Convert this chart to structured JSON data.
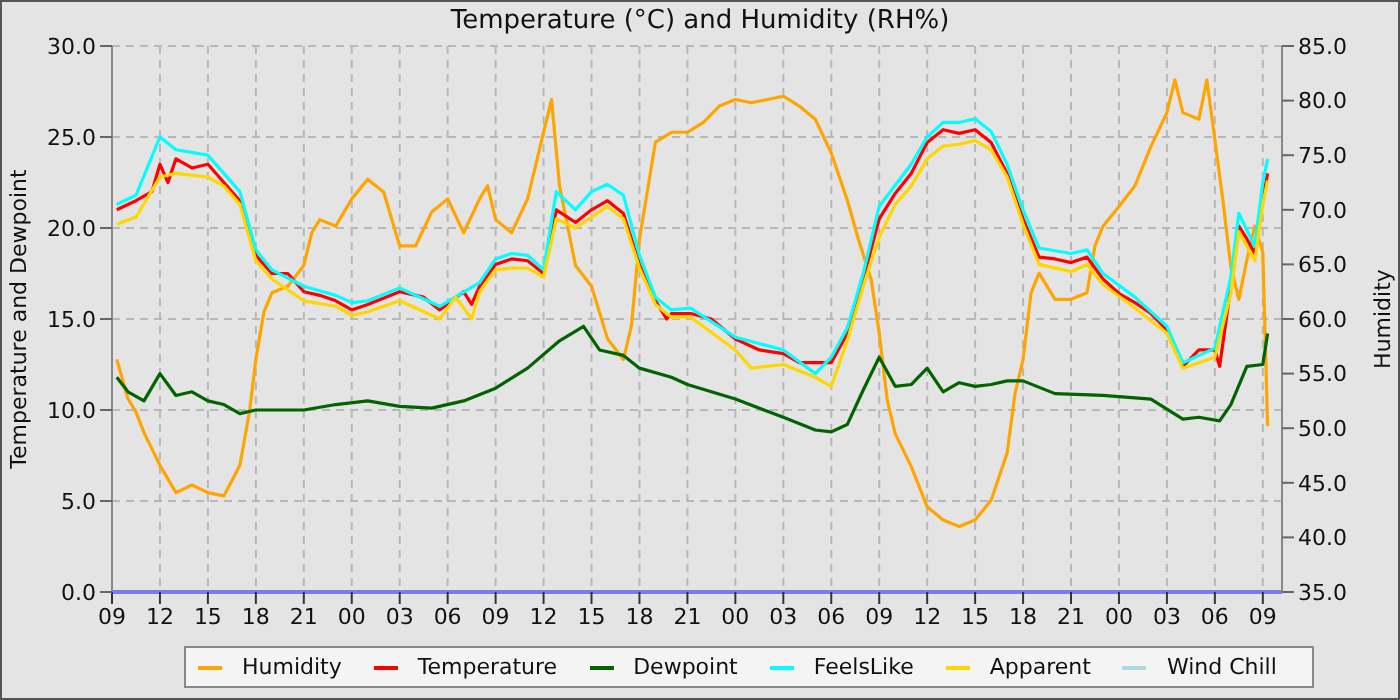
{
  "chart_data": {
    "type": "line",
    "title": "Temperature (°C) and Humidity (RH%)",
    "ylabel": "Temperature and Dewpoint",
    "y2label": "Humidity",
    "xlim": [
      9,
      82.2
    ],
    "xticks": [
      {
        "value": 9,
        "label": "09"
      },
      {
        "value": 12,
        "label": "12"
      },
      {
        "value": 15,
        "label": "15"
      },
      {
        "value": 18,
        "label": "18"
      },
      {
        "value": 21,
        "label": "21"
      },
      {
        "value": 24,
        "label": "00"
      },
      {
        "value": 27,
        "label": "03"
      },
      {
        "value": 30,
        "label": "06"
      },
      {
        "value": 33,
        "label": "09"
      },
      {
        "value": 36,
        "label": "12"
      },
      {
        "value": 39,
        "label": "15"
      },
      {
        "value": 42,
        "label": "18"
      },
      {
        "value": 45,
        "label": "21"
      },
      {
        "value": 48,
        "label": "00"
      },
      {
        "value": 51,
        "label": "03"
      },
      {
        "value": 54,
        "label": "06"
      },
      {
        "value": 57,
        "label": "09"
      },
      {
        "value": 60,
        "label": "12"
      },
      {
        "value": 63,
        "label": "15"
      },
      {
        "value": 66,
        "label": "18"
      },
      {
        "value": 69,
        "label": "21"
      },
      {
        "value": 72,
        "label": "00"
      },
      {
        "value": 75,
        "label": "03"
      },
      {
        "value": 78,
        "label": "06"
      },
      {
        "value": 81,
        "label": "09"
      }
    ],
    "ylim": [
      0,
      30
    ],
    "yticks": [
      {
        "value": 0,
        "label": "0.0"
      },
      {
        "value": 5,
        "label": "5.0"
      },
      {
        "value": 10,
        "label": "10.0"
      },
      {
        "value": 15,
        "label": "15.0"
      },
      {
        "value": 20,
        "label": "20.0"
      },
      {
        "value": 25,
        "label": "25.0"
      },
      {
        "value": 30,
        "label": "30.0"
      }
    ],
    "y2lim": [
      35,
      85
    ],
    "y2ticks": [
      {
        "value": 35,
        "label": "35.0"
      },
      {
        "value": 40,
        "label": "40.0"
      },
      {
        "value": 45,
        "label": "45.0"
      },
      {
        "value": 50,
        "label": "50.0"
      },
      {
        "value": 55,
        "label": "55.0"
      },
      {
        "value": 60,
        "label": "60.0"
      },
      {
        "value": 65,
        "label": "65.0"
      },
      {
        "value": 70,
        "label": "70.0"
      },
      {
        "value": 75,
        "label": "75.0"
      },
      {
        "value": 80,
        "label": "80.0"
      },
      {
        "value": 85,
        "label": "85.0"
      }
    ],
    "grid": true,
    "legend": "bottom",
    "marker": "none",
    "line_style": "solid",
    "series": [
      {
        "name": "Humidity",
        "color": "#ffa500",
        "axis": "y2",
        "x": [
          9.3,
          10,
          10.5,
          11,
          12,
          13,
          14,
          15,
          16,
          17,
          17.6,
          18,
          18.5,
          19,
          20,
          21,
          21.5,
          22,
          23,
          24,
          25,
          26,
          27,
          28,
          29,
          30,
          31,
          32,
          32.5,
          33,
          34,
          35,
          36,
          36.5,
          37,
          38,
          39,
          40,
          41,
          41.5,
          42,
          43,
          44,
          45,
          46,
          47,
          48,
          49,
          51,
          52,
          53,
          54,
          55,
          55.7,
          56.5,
          57,
          57.5,
          58,
          59,
          60,
          61,
          62,
          63,
          64,
          65,
          65.5,
          66,
          66.5,
          67,
          68,
          69,
          70,
          70.5,
          71,
          72,
          73,
          74,
          75,
          75.5,
          76,
          77,
          77.5,
          78,
          78.5,
          79,
          79.5,
          80,
          80.5,
          81,
          81.3
        ],
        "values": [
          56.3,
          52.7,
          51.5,
          49.6,
          46.6,
          44.1,
          44.8,
          44.1,
          43.8,
          46.6,
          51.5,
          56.3,
          60.6,
          62.4,
          63.0,
          64.9,
          67.9,
          69.1,
          68.5,
          71.0,
          72.8,
          71.6,
          66.7,
          66.7,
          69.8,
          71.0,
          67.9,
          71.0,
          72.2,
          69.1,
          67.9,
          71.0,
          77.1,
          80.1,
          72.2,
          64.9,
          63.0,
          58.2,
          56.3,
          59.4,
          67.3,
          76.2,
          77.1,
          77.1,
          78.0,
          79.5,
          80.1,
          79.8,
          80.4,
          79.5,
          78.3,
          75.2,
          70.9,
          67.3,
          63.6,
          58.7,
          52.6,
          49.5,
          46.5,
          42.8,
          41.6,
          41.0,
          41.6,
          43.4,
          47.7,
          53.2,
          56.3,
          62.4,
          64.2,
          61.8,
          61.8,
          62.4,
          66.7,
          68.5,
          70.3,
          72.2,
          75.8,
          78.9,
          81.9,
          78.9,
          78.3,
          81.9,
          76.4,
          70.9,
          64.8,
          61.8,
          65.4,
          68.5,
          66.1,
          50.2
        ]
      },
      {
        "name": "Temperature",
        "color": "#ff0000",
        "x": [
          9.3,
          10.5,
          11.5,
          12,
          12.5,
          13,
          14,
          15,
          16,
          17,
          18,
          19,
          20,
          21,
          22,
          23,
          24,
          25,
          27,
          28.5,
          29.5,
          31,
          31.5,
          32,
          33,
          34,
          35,
          36,
          36.8,
          38,
          39,
          40,
          41,
          42,
          43,
          43.7,
          44,
          45.2,
          46.5,
          48,
          49.5,
          51,
          52,
          54,
          55,
          56,
          57,
          58,
          59,
          60,
          61,
          62,
          63,
          64,
          65,
          66,
          67,
          68,
          69,
          70,
          71,
          72,
          73,
          74,
          75,
          76,
          77,
          78,
          78.3,
          79,
          79.5,
          80,
          80.5,
          81,
          81.3
        ],
        "values": [
          21.0,
          21.5,
          22.0,
          23.5,
          22.5,
          23.8,
          23.3,
          23.5,
          22.5,
          21.5,
          18.5,
          17.5,
          17.5,
          16.5,
          16.3,
          16.0,
          15.5,
          15.8,
          16.5,
          16.2,
          15.5,
          16.5,
          15.8,
          16.8,
          18.0,
          18.3,
          18.2,
          17.5,
          21.0,
          20.3,
          21.0,
          21.5,
          20.8,
          18.0,
          16.0,
          15.0,
          15.3,
          15.3,
          15.0,
          13.9,
          13.3,
          13.1,
          12.6,
          12.6,
          14.2,
          17.2,
          20.5,
          21.9,
          23.0,
          24.7,
          25.4,
          25.2,
          25.4,
          24.7,
          23.0,
          20.5,
          18.4,
          18.3,
          18.1,
          18.4,
          17.2,
          16.4,
          15.9,
          15.3,
          14.4,
          12.4,
          13.3,
          13.3,
          12.4,
          16.8,
          20.1,
          19.4,
          18.6,
          21.6,
          23.0
        ]
      },
      {
        "name": "Dewpoint",
        "color": "#006400",
        "x": [
          9.3,
          10,
          11,
          12,
          13,
          14,
          15,
          16,
          17,
          18,
          19,
          21,
          23,
          25,
          27,
          29,
          31,
          33,
          35,
          37,
          38.5,
          39.5,
          41,
          42,
          44,
          45,
          48,
          51,
          53,
          54,
          55,
          56,
          57,
          58,
          59,
          60,
          61,
          62,
          63,
          64,
          65,
          66,
          68,
          71,
          74,
          76,
          77,
          78.3,
          79,
          80,
          81,
          81.3
        ],
        "values": [
          11.8,
          11.0,
          10.5,
          12.0,
          10.8,
          11.0,
          10.5,
          10.3,
          9.8,
          10.0,
          10.0,
          10.0,
          10.3,
          10.5,
          10.2,
          10.1,
          10.5,
          11.2,
          12.3,
          13.8,
          14.6,
          13.3,
          13.0,
          12.3,
          11.8,
          11.4,
          10.6,
          9.6,
          8.9,
          8.8,
          9.2,
          11.1,
          12.9,
          11.3,
          11.4,
          12.3,
          11.0,
          11.5,
          11.3,
          11.4,
          11.6,
          11.6,
          10.9,
          10.8,
          10.6,
          9.5,
          9.6,
          9.4,
          10.3,
          12.4,
          12.5,
          14.2
        ]
      },
      {
        "name": "FeelsLike",
        "color": "#00ffff",
        "x": [
          9.3,
          10.5,
          12,
          13,
          15,
          16,
          17,
          18,
          19,
          21,
          23,
          24,
          25,
          27,
          29.5,
          32,
          33,
          34,
          35,
          36,
          36.8,
          38,
          39,
          40,
          41,
          42,
          43,
          44,
          45.2,
          48,
          51,
          53,
          54,
          55,
          56,
          57,
          59,
          60,
          61,
          62,
          63,
          64,
          65,
          66,
          67,
          69,
          70,
          71,
          73,
          75,
          76,
          78,
          79,
          79.5,
          80.5,
          81,
          81.3
        ],
        "values": [
          21.3,
          21.8,
          25.0,
          24.3,
          24.0,
          23.0,
          22.0,
          18.8,
          17.7,
          16.8,
          16.3,
          15.9,
          16.0,
          16.7,
          15.7,
          17.0,
          18.3,
          18.6,
          18.5,
          17.7,
          22.0,
          21.0,
          22.0,
          22.4,
          21.8,
          18.5,
          16.2,
          15.5,
          15.6,
          14.0,
          13.3,
          12.0,
          12.9,
          14.5,
          17.5,
          21.2,
          23.5,
          25.0,
          25.8,
          25.8,
          26.0,
          25.3,
          23.5,
          21.0,
          18.9,
          18.6,
          18.8,
          17.5,
          16.2,
          14.6,
          12.6,
          13.4,
          17.3,
          20.8,
          19.0,
          22.5,
          23.8
        ]
      },
      {
        "name": "Apparent",
        "color": "#ffd700",
        "x": [
          9.3,
          10.5,
          12,
          13,
          15,
          16,
          17,
          18,
          19,
          21,
          23,
          24,
          25,
          27,
          29.5,
          30.5,
          31.5,
          32,
          33,
          34,
          35,
          36,
          36.8,
          38,
          39,
          40,
          41,
          42,
          43,
          44,
          45.2,
          48,
          49,
          51,
          53,
          54,
          55,
          56,
          57,
          58,
          59,
          60,
          61,
          62,
          63,
          64,
          65,
          66,
          67,
          69,
          70,
          71,
          73,
          75,
          76,
          78,
          79,
          79.5,
          80.5,
          81,
          81.3
        ],
        "values": [
          20.2,
          20.6,
          22.8,
          23.0,
          22.8,
          22.3,
          21.3,
          18.2,
          17.2,
          16.0,
          15.7,
          15.2,
          15.4,
          16.0,
          15.0,
          16.2,
          15.0,
          16.5,
          17.7,
          17.8,
          17.8,
          17.3,
          20.5,
          20.0,
          20.6,
          21.2,
          20.5,
          17.8,
          15.8,
          15.1,
          15.1,
          13.3,
          12.3,
          12.5,
          11.8,
          11.3,
          13.8,
          16.8,
          19.5,
          21.3,
          22.3,
          23.8,
          24.5,
          24.6,
          24.8,
          24.3,
          22.8,
          20.2,
          18.0,
          17.6,
          18.0,
          16.9,
          15.6,
          14.2,
          12.3,
          12.9,
          16.4,
          19.8,
          18.2,
          21.3,
          22.6
        ]
      },
      {
        "name": "Wind Chill",
        "color": "#add8e6"
      }
    ]
  }
}
